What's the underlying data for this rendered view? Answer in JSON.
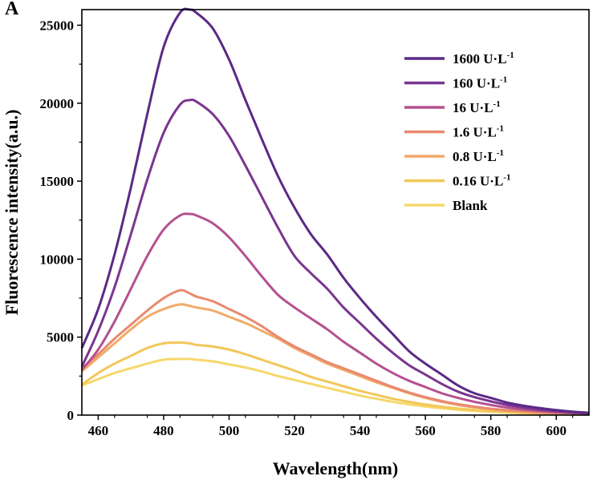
{
  "panel_label": "A",
  "chart_data": {
    "type": "line",
    "xlabel": "Wavelength(nm)",
    "ylabel": "Fluorescence intensity(a.u.)",
    "xlim": [
      455,
      610
    ],
    "ylim": [
      0,
      26000
    ],
    "xticks": [
      460,
      480,
      500,
      520,
      540,
      560,
      580,
      600
    ],
    "yticks": [
      0,
      5000,
      10000,
      15000,
      20000,
      25000
    ],
    "legend_position": "top-right",
    "x": [
      455,
      460,
      465,
      470,
      475,
      480,
      485,
      488,
      490,
      495,
      500,
      505,
      510,
      515,
      520,
      525,
      530,
      535,
      540,
      545,
      550,
      555,
      560,
      565,
      570,
      575,
      580,
      585,
      590,
      595,
      600,
      605,
      610
    ],
    "series": [
      {
        "name": "1600 U·L",
        "superscript": "-1",
        "color": "#5a2a86",
        "values": [
          4300,
          6800,
          10300,
          14600,
          19300,
          23600,
          25800,
          26000,
          25800,
          24800,
          22800,
          20200,
          17700,
          15300,
          13300,
          11600,
          10300,
          8800,
          7500,
          6300,
          5200,
          4100,
          3300,
          2600,
          1900,
          1400,
          1100,
          800,
          600,
          450,
          320,
          220,
          150
        ]
      },
      {
        "name": "160 U·L",
        "superscript": "-1",
        "color": "#7a3590",
        "values": [
          3100,
          5400,
          8200,
          11600,
          15100,
          18100,
          19900,
          20200,
          20100,
          19300,
          17900,
          16000,
          14000,
          12000,
          10200,
          9100,
          8100,
          6900,
          5900,
          4900,
          4000,
          3200,
          2600,
          2000,
          1500,
          1150,
          880,
          650,
          480,
          350,
          250,
          170,
          110
        ]
      },
      {
        "name": "16 U·L",
        "superscript": "-1",
        "color": "#b5508f",
        "values": [
          2900,
          4200,
          6000,
          8100,
          10200,
          11900,
          12800,
          12900,
          12800,
          12300,
          11400,
          10200,
          8900,
          7700,
          6900,
          6200,
          5500,
          4700,
          4000,
          3300,
          2700,
          2200,
          1800,
          1400,
          1100,
          850,
          650,
          480,
          350,
          260,
          190,
          130,
          90
        ]
      },
      {
        "name": "1.6 U·L",
        "superscript": "-1",
        "color": "#e88a6f",
        "values": [
          3000,
          3900,
          4900,
          5800,
          6700,
          7500,
          8000,
          7800,
          7600,
          7300,
          6800,
          6300,
          5700,
          5000,
          4400,
          3900,
          3400,
          3000,
          2600,
          2200,
          1800,
          1450,
          1150,
          900,
          700,
          540,
          410,
          310,
          230,
          170,
          120,
          90,
          60
        ]
      },
      {
        "name": "0.8 U·L",
        "superscript": "-1",
        "color": "#f2aa68",
        "values": [
          2800,
          3700,
          4600,
          5500,
          6300,
          6800,
          7100,
          7000,
          6900,
          6700,
          6300,
          5900,
          5400,
          4900,
          4300,
          3800,
          3300,
          2900,
          2500,
          2100,
          1750,
          1400,
          1100,
          850,
          650,
          500,
          380,
          280,
          210,
          150,
          110,
          80,
          55
        ]
      },
      {
        "name": "0.16 U·L",
        "superscript": "-1",
        "color": "#f2c75a",
        "values": [
          1950,
          2700,
          3300,
          3800,
          4300,
          4600,
          4650,
          4600,
          4500,
          4400,
          4200,
          3900,
          3550,
          3200,
          2850,
          2450,
          2150,
          1850,
          1550,
          1300,
          1050,
          850,
          680,
          540,
          420,
          330,
          250,
          190,
          140,
          100,
          75,
          55,
          40
        ]
      },
      {
        "name": "Blank",
        "superscript": "",
        "color": "#f5d86a",
        "values": [
          1900,
          2300,
          2700,
          3000,
          3300,
          3550,
          3600,
          3600,
          3550,
          3450,
          3250,
          3050,
          2800,
          2500,
          2250,
          2000,
          1750,
          1500,
          1250,
          1050,
          850,
          690,
          550,
          440,
          340,
          270,
          210,
          160,
          120,
          90,
          65,
          45,
          30
        ]
      }
    ]
  }
}
